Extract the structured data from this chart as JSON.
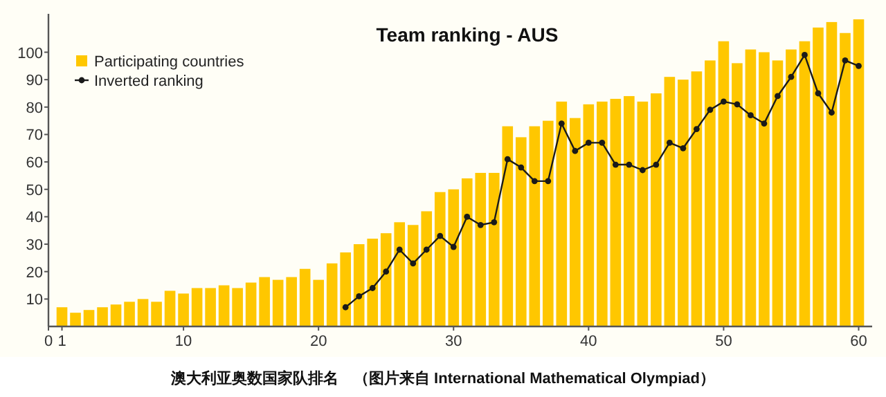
{
  "chart_data": {
    "type": "bar",
    "title": "Team ranking - AUS",
    "xlim": [
      0,
      61
    ],
    "ylim": [
      0,
      114
    ],
    "xticks": [
      0,
      1,
      10,
      20,
      30,
      40,
      50,
      60
    ],
    "yticks": [
      10,
      20,
      30,
      40,
      50,
      60,
      70,
      80,
      90,
      100
    ],
    "legend": "top left",
    "marker": "circle",
    "grid": false,
    "series": [
      {
        "name": "Participating countries",
        "color": "#ffc700",
        "x": [
          1,
          2,
          3,
          4,
          5,
          6,
          7,
          8,
          9,
          10,
          11,
          12,
          13,
          14,
          15,
          16,
          17,
          18,
          19,
          20,
          21,
          22,
          23,
          24,
          25,
          26,
          27,
          28,
          29,
          30,
          31,
          32,
          33,
          34,
          35,
          36,
          37,
          38,
          39,
          40,
          41,
          42,
          43,
          44,
          45,
          46,
          47,
          48,
          49,
          50,
          51,
          52,
          53,
          54,
          55,
          56,
          57,
          58,
          59,
          60
        ],
        "values": [
          7,
          5,
          6,
          7,
          8,
          9,
          10,
          9,
          13,
          12,
          14,
          14,
          15,
          14,
          16,
          18,
          17,
          18,
          21,
          17,
          23,
          27,
          30,
          32,
          34,
          38,
          37,
          42,
          49,
          50,
          54,
          56,
          56,
          73,
          69,
          73,
          75,
          82,
          76,
          81,
          82,
          83,
          84,
          82,
          85,
          91,
          90,
          93,
          97,
          104,
          96,
          101,
          100,
          97,
          101,
          104,
          109,
          111,
          107,
          112
        ]
      },
      {
        "name": "Inverted ranking",
        "type": "line",
        "color": "#1a1a1a",
        "x": [
          22,
          23,
          24,
          25,
          26,
          27,
          28,
          29,
          30,
          31,
          32,
          33,
          34,
          35,
          36,
          37,
          38,
          39,
          40,
          41,
          42,
          43,
          44,
          45,
          46,
          47,
          48,
          49,
          50,
          51,
          52,
          53,
          54,
          55,
          56,
          57,
          58,
          59,
          60
        ],
        "values": [
          7,
          11,
          14,
          20,
          28,
          23,
          28,
          33,
          29,
          40,
          37,
          38,
          61,
          58,
          53,
          53,
          74,
          64,
          67,
          67,
          59,
          59,
          57,
          59,
          67,
          65,
          72,
          79,
          82,
          81,
          77,
          74,
          84,
          91,
          99,
          85,
          78,
          97,
          95
        ]
      }
    ],
    "annotations": [
      "澳大利亚奥数国家队排名　（图片来自 International Mathematical Olympiad）"
    ]
  }
}
